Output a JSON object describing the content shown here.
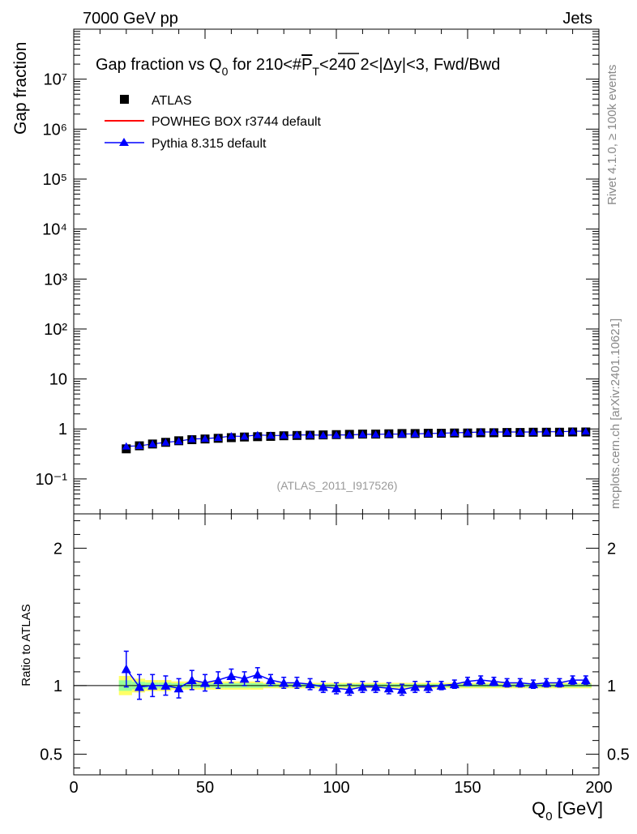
{
  "header": {
    "left": "7000 GeV pp",
    "right": "Jets"
  },
  "side_labels": {
    "rivet": "Rivet 4.1.0, ≥ 100k events",
    "mcplots": "mcplots.cern.ch [arXiv:2401.10621]"
  },
  "watermark": "(ATLAS_2011_I917526)",
  "colors": {
    "atlas": "#000000",
    "powheg": "#ff0000",
    "pythia": "#0000ff",
    "band_outer": "#ffff66",
    "band_inner": "#99ff99"
  },
  "chart_data": [
    {
      "type": "scatter",
      "title": "Gap fraction vs Q0 for 210<#PT<240  2<|Δy|<3, Fwd/Bwd",
      "title_parts": {
        "prefix": "Gap fraction vs Q",
        "sub0": "0",
        "mid": " for 210<#",
        "P": "P",
        "subT": "T",
        "suffix": "<240  2<|Δy|<3, Fwd/Bwd"
      },
      "ylabel": "Gap fraction",
      "yscale": "log",
      "ylim": [
        0.02,
        100000000
      ],
      "xlim": [
        0,
        200
      ],
      "y_tick_labels": [
        "10⁻¹",
        "1",
        "10",
        "10²",
        "10³",
        "10⁴",
        "10⁵",
        "10⁶",
        "10⁷"
      ],
      "legend": [
        {
          "name": "ATLAS",
          "marker": "square"
        },
        {
          "name": "POWHEG BOX r3744 default",
          "marker": "line"
        },
        {
          "name": "Pythia 8.315 default",
          "marker": "triangle"
        }
      ],
      "x": [
        20,
        25,
        30,
        35,
        40,
        45,
        50,
        55,
        60,
        65,
        70,
        75,
        80,
        85,
        90,
        95,
        100,
        105,
        110,
        115,
        120,
        125,
        130,
        135,
        140,
        145,
        150,
        155,
        160,
        165,
        170,
        175,
        180,
        185,
        190,
        195
      ],
      "series": [
        {
          "name": "ATLAS",
          "values": [
            0.4,
            0.46,
            0.5,
            0.54,
            0.58,
            0.61,
            0.63,
            0.65,
            0.67,
            0.69,
            0.7,
            0.71,
            0.73,
            0.74,
            0.75,
            0.76,
            0.77,
            0.78,
            0.79,
            0.79,
            0.8,
            0.81,
            0.81,
            0.82,
            0.82,
            0.83,
            0.83,
            0.84,
            0.84,
            0.85,
            0.85,
            0.86,
            0.86,
            0.86,
            0.87,
            0.87
          ]
        },
        {
          "name": "Pythia 8.315 default",
          "values": [
            0.45,
            0.46,
            0.5,
            0.54,
            0.57,
            0.63,
            0.64,
            0.67,
            0.72,
            0.71,
            0.76,
            0.74,
            0.74,
            0.76,
            0.76,
            0.75,
            0.76,
            0.76,
            0.78,
            0.78,
            0.79,
            0.79,
            0.8,
            0.81,
            0.82,
            0.84,
            0.85,
            0.87,
            0.87,
            0.87,
            0.87,
            0.87,
            0.88,
            0.88,
            0.9,
            0.9
          ]
        }
      ]
    },
    {
      "type": "line",
      "ylabel": "Ratio to ATLAS",
      "xlabel_main": "Q",
      "xlabel_sub": "0",
      "xlabel_unit": " [GeV]",
      "xlim": [
        0,
        200
      ],
      "ylim": [
        0.35,
        2.25
      ],
      "x_ticks": [
        0,
        50,
        100,
        150,
        200
      ],
      "y_ticks": [
        0.5,
        1,
        2
      ],
      "x": [
        20,
        25,
        30,
        35,
        40,
        45,
        50,
        55,
        60,
        65,
        70,
        75,
        80,
        85,
        90,
        95,
        100,
        105,
        110,
        115,
        120,
        125,
        130,
        135,
        140,
        145,
        150,
        155,
        160,
        165,
        170,
        175,
        180,
        185,
        190,
        195
      ],
      "series": [
        {
          "name": "Pythia 8.315 default",
          "values": [
            1.12,
            0.99,
            1.0,
            1.0,
            0.98,
            1.04,
            1.02,
            1.04,
            1.07,
            1.05,
            1.08,
            1.04,
            1.02,
            1.02,
            1.01,
            0.99,
            0.98,
            0.97,
            0.99,
            0.99,
            0.98,
            0.97,
            0.99,
            0.99,
            1.0,
            1.01,
            1.03,
            1.04,
            1.03,
            1.02,
            1.02,
            1.01,
            1.02,
            1.02,
            1.04,
            1.04
          ],
          "errors": [
            0.13,
            0.09,
            0.08,
            0.07,
            0.07,
            0.07,
            0.06,
            0.06,
            0.05,
            0.05,
            0.05,
            0.04,
            0.04,
            0.04,
            0.04,
            0.04,
            0.04,
            0.04,
            0.04,
            0.04,
            0.04,
            0.04,
            0.04,
            0.04,
            0.03,
            0.03,
            0.03,
            0.03,
            0.03,
            0.03,
            0.03,
            0.03,
            0.03,
            0.03,
            0.03,
            0.03
          ]
        }
      ],
      "band_halfwidth": [
        0.07,
        0.05,
        0.04,
        0.04,
        0.03,
        0.03,
        0.03,
        0.03,
        0.03,
        0.03,
        0.03,
        0.02,
        0.02,
        0.02,
        0.02,
        0.02,
        0.02,
        0.02,
        0.02,
        0.02,
        0.02,
        0.02,
        0.02,
        0.02,
        0.02,
        0.02,
        0.02,
        0.02,
        0.02,
        0.02,
        0.02,
        0.02,
        0.02,
        0.02,
        0.02,
        0.02
      ]
    }
  ]
}
